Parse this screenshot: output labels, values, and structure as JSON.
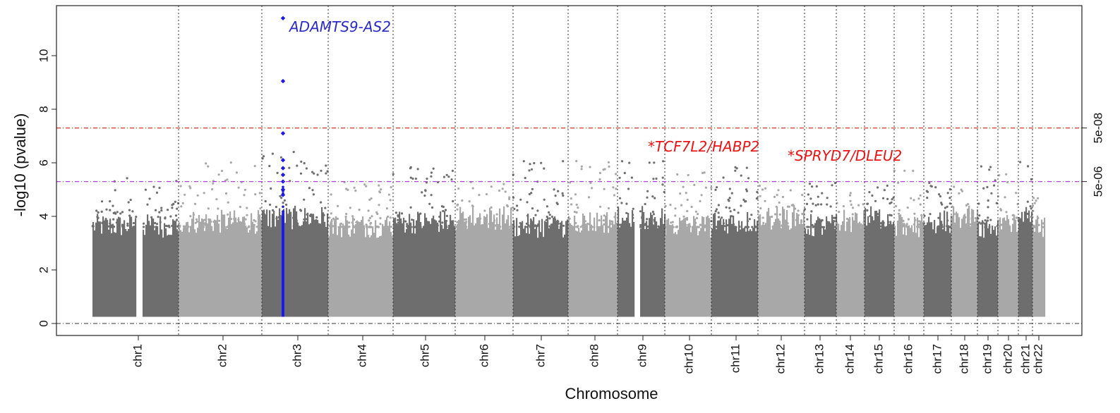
{
  "chart_data": {
    "type": "scatter",
    "subtype": "manhattan",
    "xlabel": "Chromosome",
    "ylabel": "-log10 (pvalue)",
    "ylim": [
      -0.5,
      11.8
    ],
    "yticks": [
      0,
      2,
      4,
      6,
      8,
      10
    ],
    "grid": "vertical dotted lines at chromosome boundaries",
    "chromosomes": [
      "chr1",
      "chr2",
      "chr3",
      "chr4",
      "chr5",
      "chr6",
      "chr7",
      "chr8",
      "chr9",
      "chr10",
      "chr11",
      "chr12",
      "chr13",
      "chr14",
      "chr15",
      "chr16",
      "chr17",
      "chr18",
      "chr19",
      "chr20",
      "chr21",
      "chr22"
    ],
    "thresholds": [
      {
        "label": "5e-08",
        "value": 7.3,
        "color": "#e0302a"
      },
      {
        "label": "5e-06",
        "value": 5.3,
        "color": "#b440e6"
      }
    ],
    "annotations": [
      {
        "text": "ADAMTS9-AS2",
        "chromosome": "chr3",
        "color": "#2a2acc"
      },
      {
        "text": "*TCF7L2/HABP2",
        "chromosome": "chr10",
        "color": "#ee1111"
      },
      {
        "text": "*SPRYD7/DLEU2",
        "chromosome": "chr13",
        "color": "#ee1111"
      }
    ],
    "highlighted_series": {
      "chromosome": "chr3",
      "color": "#1a1aee",
      "top_points": [
        11.4,
        9.05,
        7.1,
        6.1,
        5.8,
        5.55,
        5.3,
        5.0,
        4.8
      ]
    },
    "chromosome_peaks": [
      {
        "chromosome": "chr1",
        "peak": 5.45
      },
      {
        "chromosome": "chr2",
        "peak": 6.15
      },
      {
        "chromosome": "chr3",
        "peak": 11.4
      },
      {
        "chromosome": "chr4",
        "peak": 5.3
      },
      {
        "chromosome": "chr5",
        "peak": 6.05
      },
      {
        "chromosome": "chr6",
        "peak": 5.3
      },
      {
        "chromosome": "chr7",
        "peak": 6.1
      },
      {
        "chromosome": "chr8",
        "peak": 6.1
      },
      {
        "chromosome": "chr9",
        "peak": 6.5
      },
      {
        "chromosome": "chr10",
        "peak": 5.7
      },
      {
        "chromosome": "chr11",
        "peak": 5.85
      },
      {
        "chromosome": "chr12",
        "peak": 5.2
      },
      {
        "chromosome": "chr13",
        "peak": 5.3
      },
      {
        "chromosome": "chr14",
        "peak": 5.0
      },
      {
        "chromosome": "chr15",
        "peak": 5.25
      },
      {
        "chromosome": "chr16",
        "peak": 6.0
      },
      {
        "chromosome": "chr17",
        "peak": 5.3
      },
      {
        "chromosome": "chr18",
        "peak": 5.2
      },
      {
        "chromosome": "chr19",
        "peak": 5.9
      },
      {
        "chromosome": "chr20",
        "peak": 5.7
      },
      {
        "chromosome": "chr21",
        "peak": 6.45
      },
      {
        "chromosome": "chr22",
        "peak": 4.9
      }
    ],
    "colors": {
      "dark_gray": "#6e6e6e",
      "light_gray": "#a8a8a8",
      "highlight": "#1a1aee",
      "zero_line": "#333333",
      "boundary_line": "#333333"
    }
  }
}
